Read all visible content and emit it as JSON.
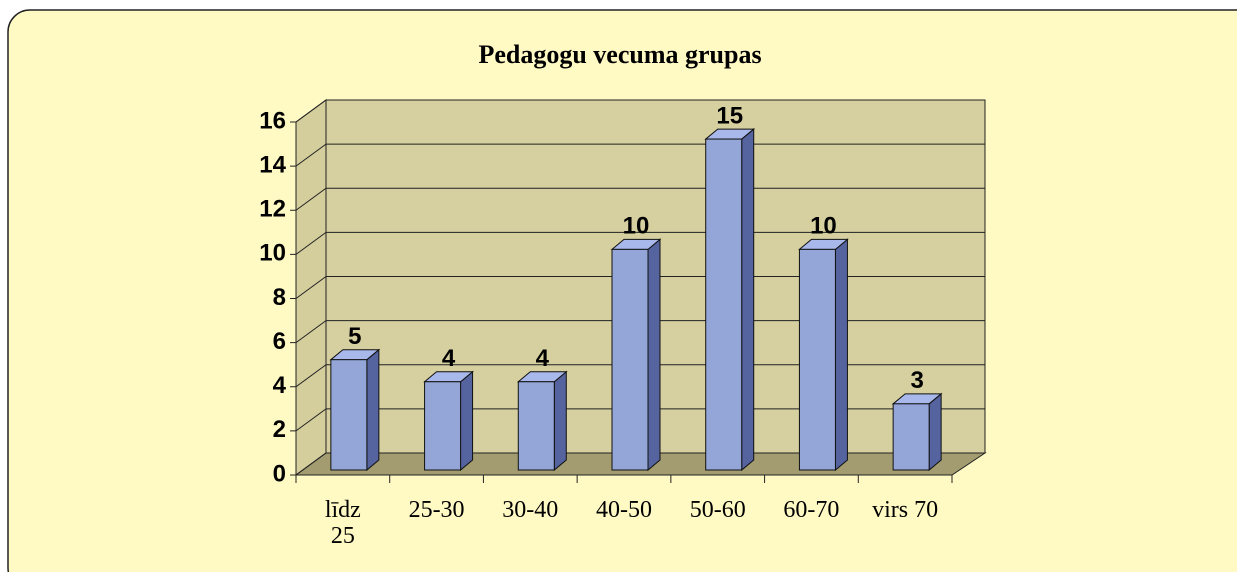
{
  "chart_data": {
    "type": "bar3d",
    "title": "Pedagogu vecuma grupas",
    "categories": [
      "līdz 25",
      "25-30",
      "30-40",
      "40-50",
      "50-60",
      "60-70",
      "virs 70"
    ],
    "values": [
      5,
      4,
      4,
      10,
      15,
      10,
      3
    ],
    "color": "#94a6d8",
    "ylim": [
      0,
      16
    ],
    "yticks": [
      0,
      2,
      4,
      6,
      8,
      10,
      12,
      14,
      16
    ],
    "grid": true
  }
}
